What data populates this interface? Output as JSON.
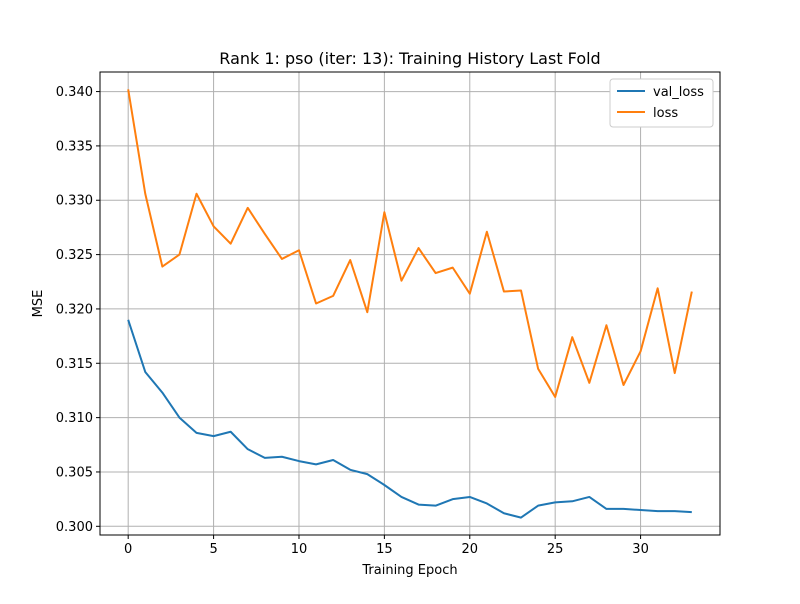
{
  "chart_data": {
    "type": "line",
    "title": "Rank 1: pso (iter: 13): Training History Last Fold",
    "xlabel": "Training Epoch",
    "ylabel": "MSE",
    "xlim": [
      -1.65,
      34.65
    ],
    "ylim": [
      0.2992,
      0.3418
    ],
    "xticks": [
      0,
      5,
      10,
      15,
      20,
      25,
      30
    ],
    "xtick_labels": [
      "0",
      "5",
      "10",
      "15",
      "20",
      "25",
      "30"
    ],
    "yticks": [
      0.3,
      0.305,
      0.31,
      0.315,
      0.32,
      0.325,
      0.33,
      0.335,
      0.34
    ],
    "ytick_labels": [
      "0.300",
      "0.305",
      "0.310",
      "0.315",
      "0.320",
      "0.325",
      "0.330",
      "0.335",
      "0.340"
    ],
    "grid": true,
    "legend_position": "top-right",
    "x": [
      0,
      1,
      2,
      3,
      4,
      5,
      6,
      7,
      8,
      9,
      10,
      11,
      12,
      13,
      14,
      15,
      16,
      17,
      18,
      19,
      20,
      21,
      22,
      23,
      24,
      25,
      26,
      27,
      28,
      29,
      30,
      31,
      32,
      33
    ],
    "series": [
      {
        "name": "val_loss",
        "color": "#1f77b4",
        "values": [
          0.319,
          0.3142,
          0.3123,
          0.31,
          0.3086,
          0.3083,
          0.3087,
          0.3071,
          0.3063,
          0.3064,
          0.306,
          0.3057,
          0.3061,
          0.3052,
          0.3048,
          0.3038,
          0.3027,
          0.302,
          0.3019,
          0.3025,
          0.3027,
          0.3021,
          0.3012,
          0.3008,
          0.3019,
          0.3022,
          0.3023,
          0.3027,
          0.3016,
          0.3016,
          0.3015,
          0.3014,
          0.3014,
          0.3013
        ]
      },
      {
        "name": "loss",
        "color": "#ff7f0e",
        "values": [
          0.3402,
          0.3306,
          0.3239,
          0.325,
          0.3306,
          0.3276,
          0.326,
          0.3293,
          0.3269,
          0.3246,
          0.3254,
          0.3205,
          0.3212,
          0.3245,
          0.3197,
          0.3289,
          0.3226,
          0.3256,
          0.3233,
          0.3238,
          0.3214,
          0.3271,
          0.3216,
          0.3217,
          0.3145,
          0.3119,
          0.3174,
          0.3132,
          0.3185,
          0.313,
          0.3161,
          0.3219,
          0.3141,
          0.3216
        ]
      }
    ]
  }
}
